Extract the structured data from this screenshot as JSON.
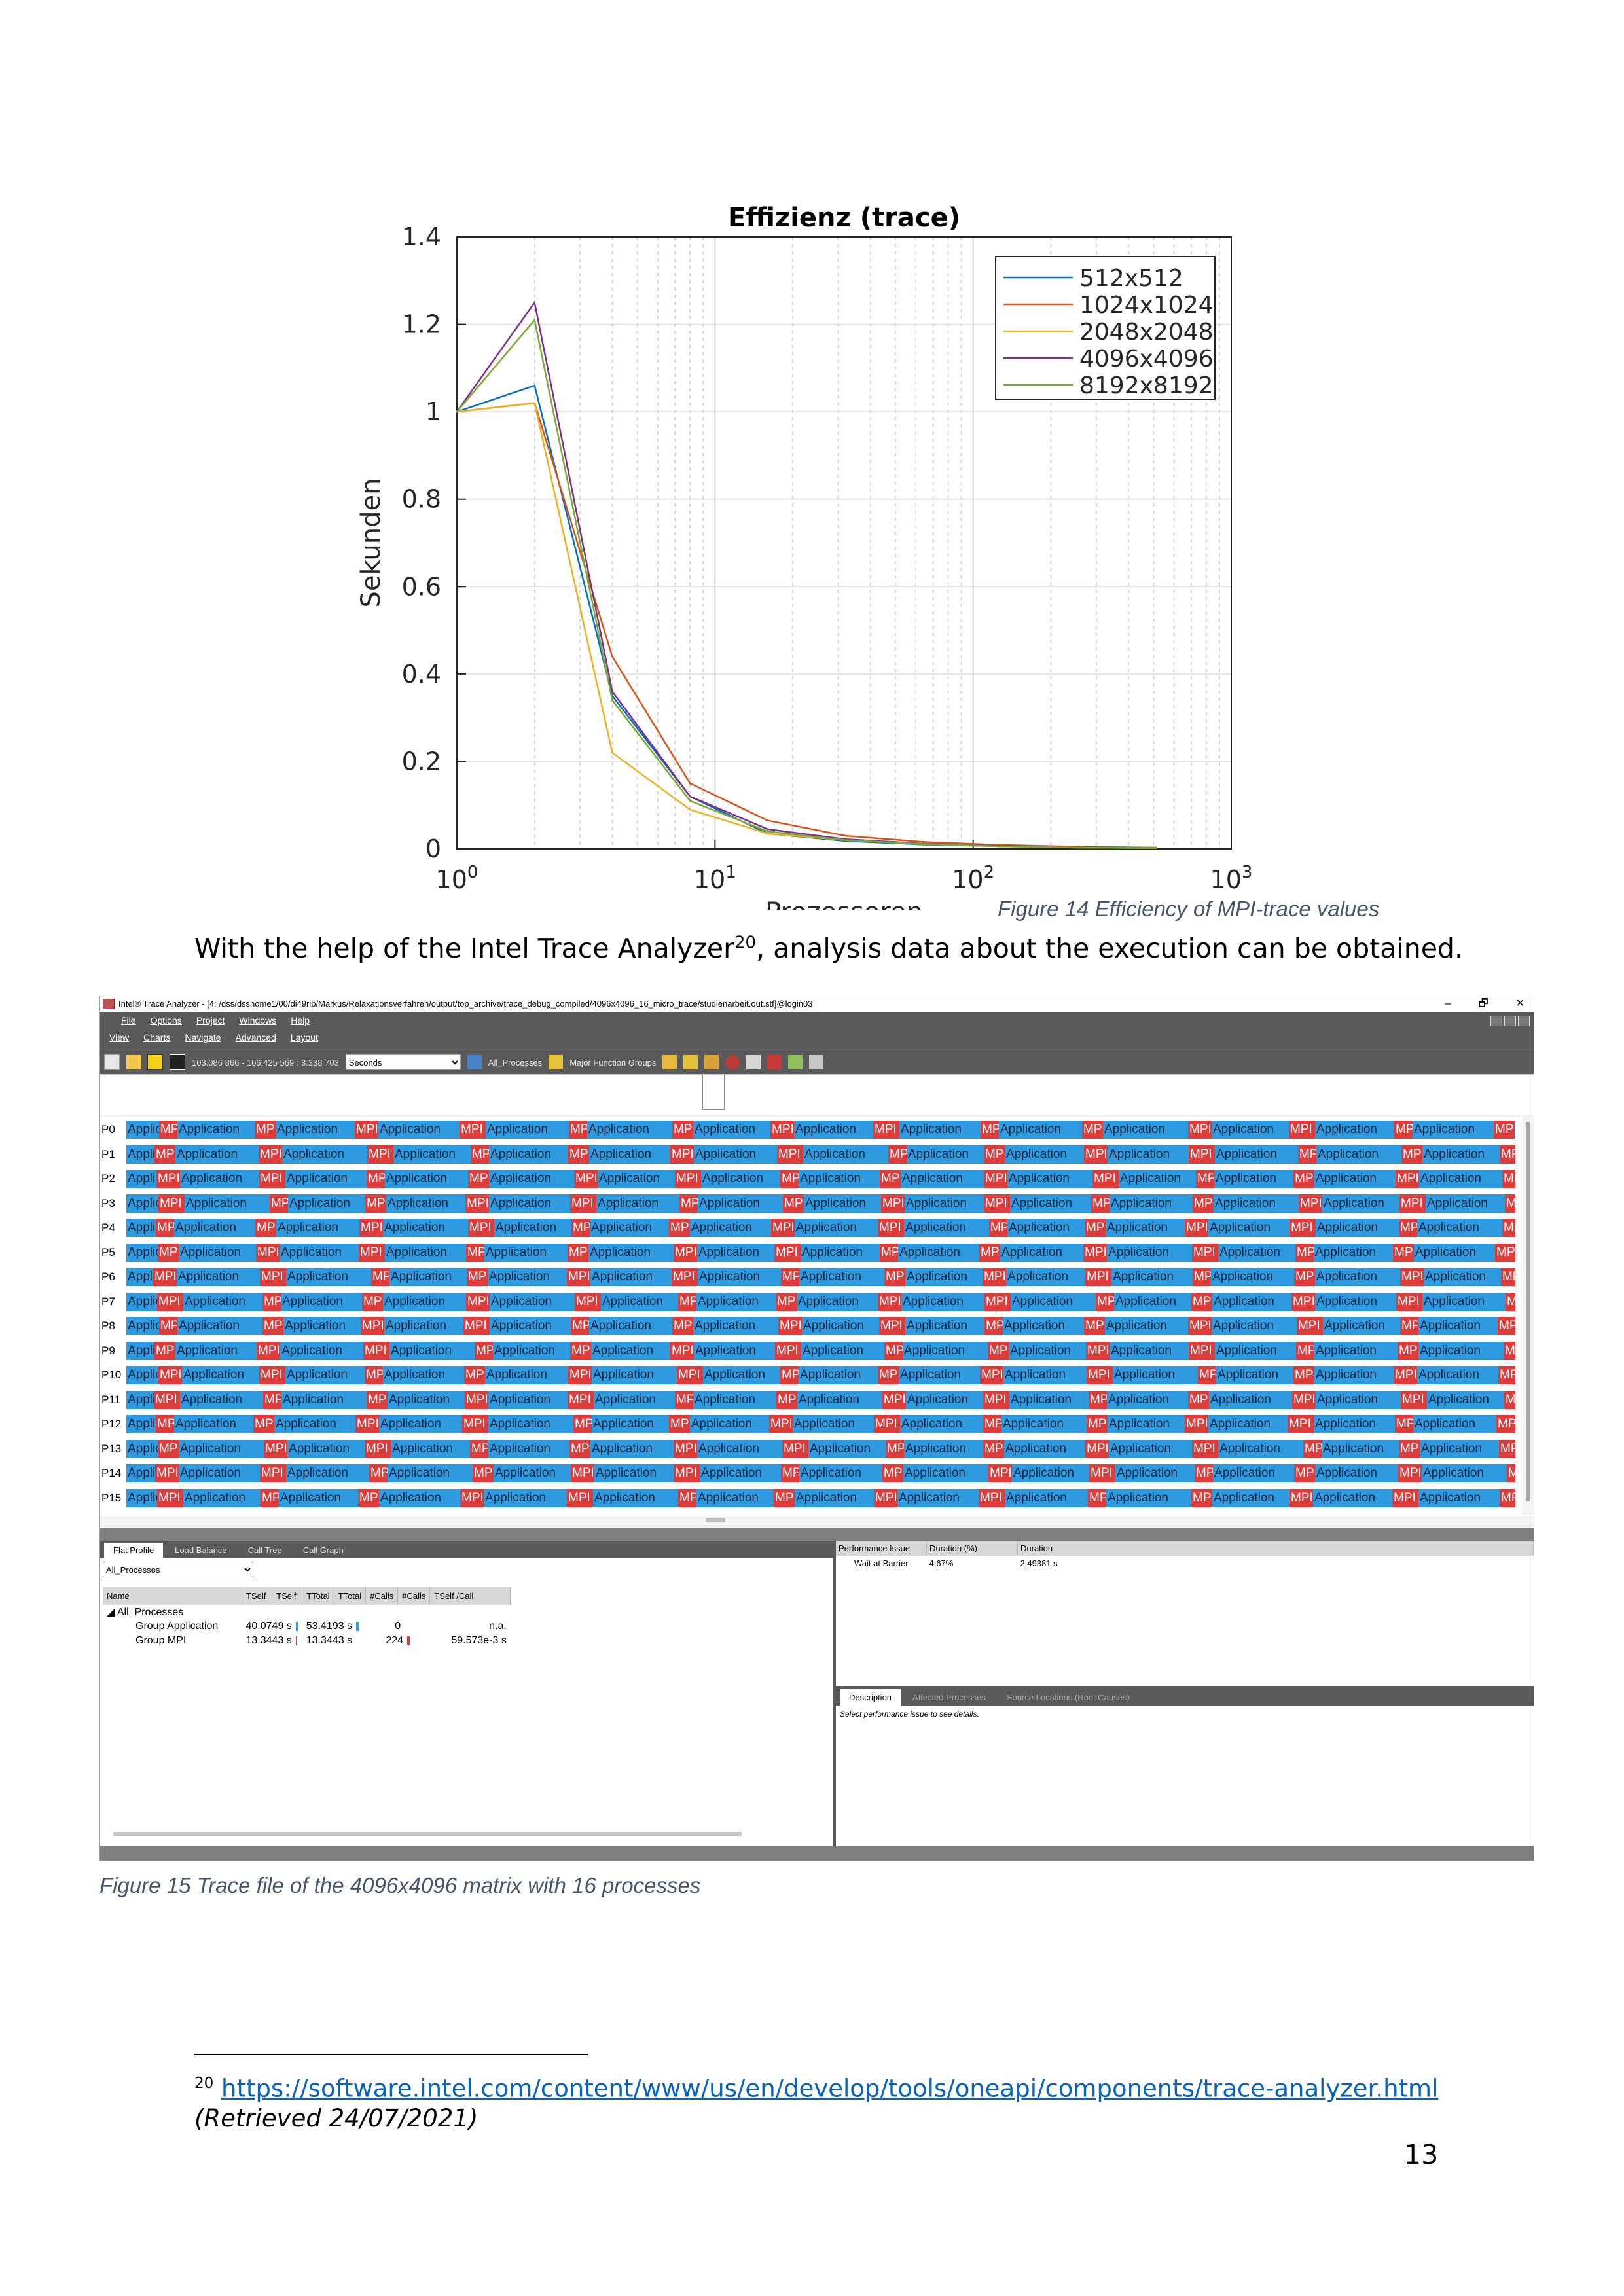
{
  "figure14": {
    "caption": "Figure 14 Efficiency of MPI-trace values",
    "chart_data": {
      "type": "line",
      "title": "Effizienz (trace)",
      "xlabel": "Prozessoren",
      "ylabel": "Sekunden",
      "xscale": "log",
      "xlim": [
        1,
        1000
      ],
      "ylim": [
        0,
        1.4
      ],
      "xticks": [
        1,
        10,
        100,
        1000
      ],
      "xtick_labels": [
        "10^0",
        "10^1",
        "10^2",
        "10^3"
      ],
      "yticks": [
        0,
        0.2,
        0.4,
        0.6,
        0.8,
        1,
        1.2,
        1.4
      ],
      "ytick_labels": [
        "0",
        "0.2",
        "0.4",
        "0.6",
        "0.8",
        "1",
        "1.2",
        "1.4"
      ],
      "grid": true,
      "legend_position": "top-right",
      "x": [
        1,
        2,
        4,
        8,
        16,
        32,
        64,
        128,
        256,
        512
      ],
      "series": [
        {
          "name": "512x512",
          "color": "#0072bd",
          "values": [
            1,
            1.06,
            0.35,
            0.12,
            0.035,
            0.018,
            0.01,
            0.006,
            0.003,
            0.002
          ]
        },
        {
          "name": "1024x1024",
          "color": "#d95319",
          "values": [
            1,
            1.02,
            0.44,
            0.15,
            0.065,
            0.03,
            0.016,
            0.009,
            0.005,
            0.003
          ]
        },
        {
          "name": "2048x2048",
          "color": "#edb120",
          "values": [
            1,
            1.02,
            0.22,
            0.09,
            0.035,
            0.02,
            0.011,
            0.006,
            0.003,
            0.002
          ]
        },
        {
          "name": "4096x4096",
          "color": "#7e2f8e",
          "values": [
            1,
            1.25,
            0.36,
            0.12,
            0.045,
            0.022,
            0.012,
            0.007,
            0.004,
            0.002
          ]
        },
        {
          "name": "8192x8192",
          "color": "#77ac30",
          "values": [
            1,
            1.21,
            0.34,
            0.11,
            0.04,
            0.02,
            0.011,
            0.006,
            0.003,
            0.002
          ]
        }
      ]
    }
  },
  "body": {
    "text_before": "With the help of the Intel Trace Analyzer",
    "footnote_ref": "20",
    "text_after": ", analysis data about the execution can be obtained."
  },
  "screenshot": {
    "window_title": "Intel® Trace Analyzer - [4: /dss/dsshome1/00/di49rib/Markus/Relaxationsverfahren/output/top_archive/trace_debug_compiled/4096x4096_16_micro_trace/studienarbeit.out.stf]@login03",
    "window_controls": [
      "–",
      "🗗",
      "✕"
    ],
    "menu_row1": [
      "File",
      "Options",
      "Project",
      "Windows",
      "Help"
    ],
    "menu_row2": [
      "View",
      "Charts",
      "Navigate",
      "Advanced",
      "Layout"
    ],
    "toolbar": {
      "time_range": "103.086 866 - 106.425 569 : 3.338 703",
      "unit_select": "Seconds",
      "processes_label": "All_Processes",
      "groups_label": "Major Function Groups"
    },
    "process_labels": [
      "P0",
      "P1",
      "P2",
      "P3",
      "P4",
      "P5",
      "P6",
      "P7",
      "P8",
      "P9",
      "P10",
      "P11",
      "P12",
      "P13",
      "P14",
      "P15"
    ],
    "app_label": "Application",
    "mpi_label": "MPI",
    "colors": {
      "application": "#2e9be0",
      "mpi": "#de3b3b"
    },
    "bottom_left": {
      "tabs": [
        "Flat Profile",
        "Load Balance",
        "Call Tree",
        "Call Graph"
      ],
      "process_select": "All_Processes",
      "columns": [
        "Name",
        "TSelf",
        "TSelf",
        "TTotal",
        "TTotal",
        "#Calls",
        "#Calls",
        "TSelf /Call"
      ],
      "root": "All_Processes",
      "rows": [
        {
          "name": "Group Application",
          "tself": "40.0749 s",
          "ttotal": "53.4193 s",
          "calls": "0",
          "tself_per_call": "n.a."
        },
        {
          "name": "Group MPI",
          "tself": "13.3443 s",
          "ttotal": "13.3443 s",
          "calls": "224",
          "tself_per_call": "59.573e-3 s"
        }
      ]
    },
    "bottom_right": {
      "columns": [
        "Performance Issue",
        "Duration (%)",
        "Duration"
      ],
      "rows": [
        {
          "issue": "Wait at Barrier",
          "duration_pct": "4.67%",
          "duration": "2.49381 s"
        }
      ],
      "desc_tabs": [
        "Description",
        "Affected Processes",
        "Source Locations (Root Causes)"
      ],
      "desc_text": "Select performance issue to see details."
    }
  },
  "figure15_caption": "Figure 15 Trace file of the 4096x4096 matrix with 16 processes",
  "footnote": {
    "number": "20",
    "url": "https://software.intel.com/content/www/us/en/develop/tools/oneapi/components/trace-analyzer.html",
    "retrieved": "(Retrieved 24/07/2021)"
  },
  "page_number": "13"
}
